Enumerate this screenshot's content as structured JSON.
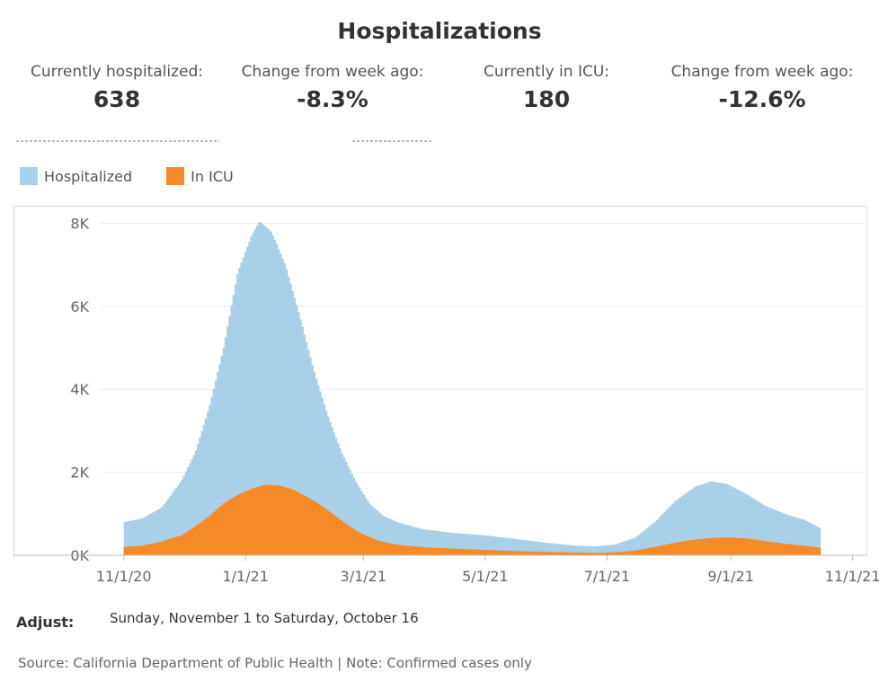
{
  "header": {
    "title": "Hospitalizations"
  },
  "kpis": [
    {
      "label": "Currently hospitalized:",
      "value": "638"
    },
    {
      "label": "Change from week ago:",
      "value": "-8.3%"
    },
    {
      "label": "Currently in ICU:",
      "value": "180"
    },
    {
      "label": "Change from week ago:",
      "value": "-12.6%"
    }
  ],
  "legend": [
    {
      "label": "Hospitalized",
      "color": "#a9d0e9"
    },
    {
      "label": "In ICU",
      "color": "#f58a26"
    }
  ],
  "controls": {
    "adjust_label": "Adjust:",
    "range_text": "Sunday, November 1 to Saturday, October 16"
  },
  "footer": {
    "source": "Source: California Department of Public Health | Note: Confirmed cases only"
  },
  "chart_data": {
    "type": "area",
    "x_tick_labels": [
      "11/1/20",
      "1/1/21",
      "3/1/21",
      "5/1/21",
      "7/1/21",
      "9/1/21",
      "11/1/21"
    ],
    "x_tick_dates": [
      "2020-11-01",
      "2021-01-01",
      "2021-03-01",
      "2021-05-01",
      "2021-07-01",
      "2021-09-01",
      "2021-11-01"
    ],
    "y_tick_labels": [
      "0K",
      "2K",
      "4K",
      "6K",
      "8K"
    ],
    "y_tick_values": [
      0,
      2000,
      4000,
      6000,
      8000
    ],
    "ylim": [
      0,
      8400
    ],
    "xlim": [
      "2020-10-20",
      "2021-11-07"
    ],
    "grid": true,
    "series": [
      {
        "name": "Hospitalized",
        "color": "#a9d0e9",
        "points": [
          [
            "2020-11-01",
            800
          ],
          [
            "2020-11-10",
            880
          ],
          [
            "2020-11-20",
            1150
          ],
          [
            "2020-11-30",
            1800
          ],
          [
            "2020-12-07",
            2500
          ],
          [
            "2020-12-14",
            3600
          ],
          [
            "2020-12-21",
            5000
          ],
          [
            "2020-12-28",
            6800
          ],
          [
            "2021-01-04",
            7700
          ],
          [
            "2021-01-08",
            8050
          ],
          [
            "2021-01-14",
            7800
          ],
          [
            "2021-01-21",
            7000
          ],
          [
            "2021-01-28",
            5800
          ],
          [
            "2021-02-04",
            4500
          ],
          [
            "2021-02-11",
            3400
          ],
          [
            "2021-02-18",
            2500
          ],
          [
            "2021-02-25",
            1800
          ],
          [
            "2021-03-04",
            1250
          ],
          [
            "2021-03-11",
            950
          ],
          [
            "2021-03-18",
            800
          ],
          [
            "2021-03-25",
            700
          ],
          [
            "2021-04-01",
            620
          ],
          [
            "2021-04-15",
            540
          ],
          [
            "2021-05-01",
            480
          ],
          [
            "2021-05-15",
            400
          ],
          [
            "2021-06-01",
            300
          ],
          [
            "2021-06-15",
            230
          ],
          [
            "2021-06-25",
            210
          ],
          [
            "2021-07-05",
            260
          ],
          [
            "2021-07-15",
            420
          ],
          [
            "2021-07-25",
            800
          ],
          [
            "2021-08-04",
            1300
          ],
          [
            "2021-08-14",
            1650
          ],
          [
            "2021-08-22",
            1780
          ],
          [
            "2021-08-30",
            1720
          ],
          [
            "2021-09-08",
            1500
          ],
          [
            "2021-09-18",
            1200
          ],
          [
            "2021-09-28",
            1000
          ],
          [
            "2021-10-08",
            850
          ],
          [
            "2021-10-16",
            650
          ]
        ]
      },
      {
        "name": "In ICU",
        "color": "#f58a26",
        "points": [
          [
            "2020-11-01",
            200
          ],
          [
            "2020-11-10",
            230
          ],
          [
            "2020-11-20",
            330
          ],
          [
            "2020-11-30",
            480
          ],
          [
            "2020-12-07",
            700
          ],
          [
            "2020-12-14",
            950
          ],
          [
            "2020-12-21",
            1250
          ],
          [
            "2020-12-28",
            1450
          ],
          [
            "2021-01-04",
            1600
          ],
          [
            "2021-01-11",
            1700
          ],
          [
            "2021-01-18",
            1680
          ],
          [
            "2021-01-25",
            1580
          ],
          [
            "2021-02-01",
            1400
          ],
          [
            "2021-02-08",
            1200
          ],
          [
            "2021-02-15",
            950
          ],
          [
            "2021-02-22",
            700
          ],
          [
            "2021-03-01",
            500
          ],
          [
            "2021-03-08",
            360
          ],
          [
            "2021-03-15",
            280
          ],
          [
            "2021-03-22",
            230
          ],
          [
            "2021-04-01",
            190
          ],
          [
            "2021-04-15",
            160
          ],
          [
            "2021-05-01",
            130
          ],
          [
            "2021-05-15",
            100
          ],
          [
            "2021-06-01",
            80
          ],
          [
            "2021-06-15",
            65
          ],
          [
            "2021-06-25",
            55
          ],
          [
            "2021-07-05",
            70
          ],
          [
            "2021-07-15",
            110
          ],
          [
            "2021-07-25",
            200
          ],
          [
            "2021-08-04",
            300
          ],
          [
            "2021-08-14",
            380
          ],
          [
            "2021-08-24",
            420
          ],
          [
            "2021-09-01",
            430
          ],
          [
            "2021-09-10",
            400
          ],
          [
            "2021-09-20",
            330
          ],
          [
            "2021-10-01",
            260
          ],
          [
            "2021-10-10",
            220
          ],
          [
            "2021-10-16",
            180
          ]
        ]
      }
    ]
  }
}
